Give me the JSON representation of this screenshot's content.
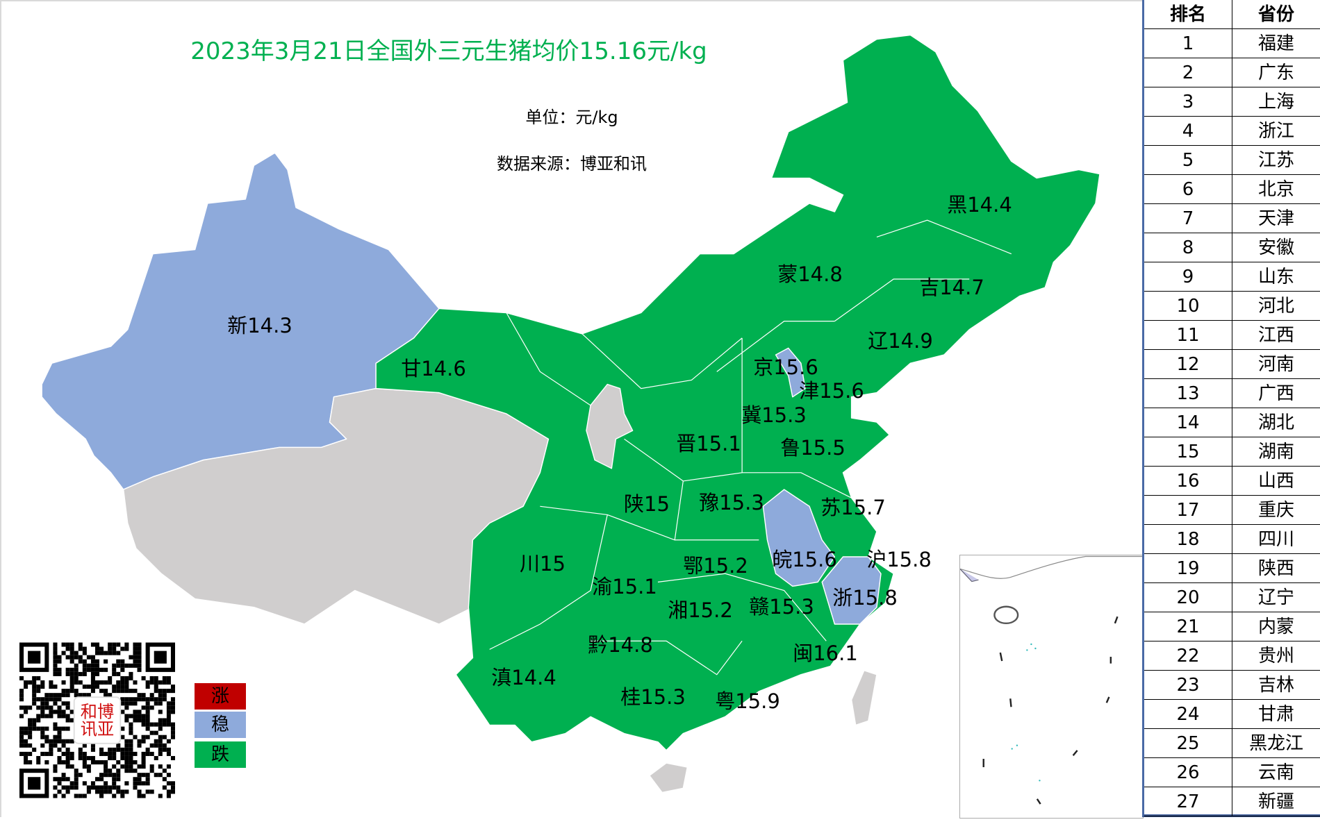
{
  "title": "2023年3月21日全国外三元生猪均价15.16元/kg",
  "unit": "单位：元/kg",
  "source": "数据来源：博亚和讯",
  "colors": {
    "rise": "#c00000",
    "stable": "#8eaadb",
    "fall": "#00b050",
    "no_data": "#d0cece",
    "title": "#00b050"
  },
  "legend": [
    {
      "label": "涨",
      "color": "#c00000"
    },
    {
      "label": "稳",
      "color": "#8eaadb"
    },
    {
      "label": "跌",
      "color": "#00b050"
    }
  ],
  "qr_logo_text": "博亚和讯",
  "labels": [
    {
      "text": "新14.3",
      "status": "稳"
    },
    {
      "text": "甘14.6",
      "status": "跌"
    },
    {
      "text": "蒙14.8",
      "status": "跌"
    },
    {
      "text": "黑14.4",
      "status": "跌"
    },
    {
      "text": "吉14.7",
      "status": "跌"
    },
    {
      "text": "辽14.9",
      "status": "跌"
    },
    {
      "text": "京15.6",
      "status": "稳"
    },
    {
      "text": "津15.6",
      "status": "稳"
    },
    {
      "text": "冀15.3",
      "status": "跌"
    },
    {
      "text": "晋15.1",
      "status": "跌"
    },
    {
      "text": "鲁15.5",
      "status": "跌"
    },
    {
      "text": "陕15",
      "status": "跌"
    },
    {
      "text": "豫15.3",
      "status": "跌"
    },
    {
      "text": "苏15.7",
      "status": "跌"
    },
    {
      "text": "川15",
      "status": "跌"
    },
    {
      "text": "鄂15.2",
      "status": "跌"
    },
    {
      "text": "皖15.6",
      "status": "稳"
    },
    {
      "text": "沪15.8",
      "status": "稳"
    },
    {
      "text": "渝15.1",
      "status": "跌"
    },
    {
      "text": "湘15.2",
      "status": "跌"
    },
    {
      "text": "赣15.3",
      "status": "跌"
    },
    {
      "text": "浙15.8",
      "status": "稳"
    },
    {
      "text": "黔14.8",
      "status": "跌"
    },
    {
      "text": "闽16.1",
      "status": "跌"
    },
    {
      "text": "滇14.4",
      "status": "跌"
    },
    {
      "text": "桂15.3",
      "status": "跌"
    },
    {
      "text": "粤15.9",
      "status": "跌"
    }
  ],
  "table": {
    "headers": [
      "排名",
      "省份"
    ],
    "rows": [
      [
        "1",
        "福建"
      ],
      [
        "2",
        "广东"
      ],
      [
        "3",
        "上海"
      ],
      [
        "4",
        "浙江"
      ],
      [
        "5",
        "江苏"
      ],
      [
        "6",
        "北京"
      ],
      [
        "7",
        "天津"
      ],
      [
        "8",
        "安徽"
      ],
      [
        "9",
        "山东"
      ],
      [
        "10",
        "河北"
      ],
      [
        "11",
        "江西"
      ],
      [
        "12",
        "河南"
      ],
      [
        "13",
        "广西"
      ],
      [
        "14",
        "湖北"
      ],
      [
        "15",
        "湖南"
      ],
      [
        "16",
        "山西"
      ],
      [
        "17",
        "重庆"
      ],
      [
        "18",
        "四川"
      ],
      [
        "19",
        "陕西"
      ],
      [
        "20",
        "辽宁"
      ],
      [
        "21",
        "内蒙"
      ],
      [
        "22",
        "贵州"
      ],
      [
        "23",
        "吉林"
      ],
      [
        "24",
        "甘肃"
      ],
      [
        "25",
        "黑龙江"
      ],
      [
        "26",
        "云南"
      ],
      [
        "27",
        "新疆"
      ]
    ]
  }
}
